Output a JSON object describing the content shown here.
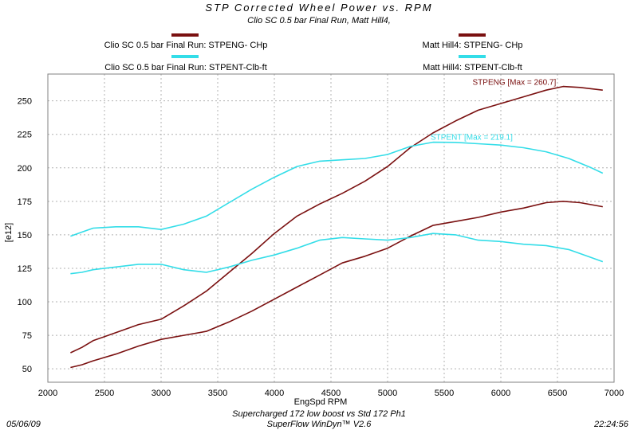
{
  "chart_data": {
    "type": "line",
    "title": "STP  Corrected  Wheel  Power  vs.  RPM",
    "subtitle": "Clio SC 0.5 bar Final Run, Matt Hill4,",
    "xlabel": "EngSpd  RPM",
    "ylabel": "[e12]",
    "xlim": [
      2000,
      7000
    ],
    "ylim": [
      40,
      270
    ],
    "xticks": [
      2000,
      2500,
      3000,
      3500,
      4000,
      4500,
      5000,
      5500,
      6000,
      6500,
      7000
    ],
    "yticks": [
      50,
      75,
      100,
      125,
      150,
      175,
      200,
      225,
      250
    ],
    "grid": true,
    "legend": [
      {
        "label": "Clio SC 0.5 bar Final Run: STPENG- CHp",
        "color": "#7a1010"
      },
      {
        "label": "Clio SC 0.5 bar Final Run: STPENT-Clb-ft",
        "color": "#33dde8"
      },
      {
        "label": "Matt Hill4: STPENG- CHp",
        "color": "#7a1010"
      },
      {
        "label": "Matt Hill4: STPENT-Clb-ft",
        "color": "#33dde8"
      }
    ],
    "series": [
      {
        "name": "Clio SC 0.5 bar Final Run: STPENG- CHp",
        "color": "#7a1010",
        "x": [
          2200,
          2300,
          2400,
          2600,
          2800,
          3000,
          3200,
          3400,
          3600,
          3800,
          4000,
          4200,
          4400,
          4600,
          4800,
          5000,
          5200,
          5400,
          5600,
          5800,
          6000,
          6200,
          6400,
          6550,
          6700,
          6900
        ],
        "y": [
          62,
          66,
          71,
          77,
          83,
          87,
          97,
          108,
          122,
          136,
          151,
          164,
          173,
          181,
          190,
          201,
          215,
          226,
          235,
          243,
          248,
          253,
          258,
          260.7,
          260,
          258
        ]
      },
      {
        "name": "Clio SC 0.5 bar Final Run: STPENT-Clb-ft",
        "color": "#33dde8",
        "x": [
          2200,
          2300,
          2400,
          2600,
          2800,
          3000,
          3200,
          3400,
          3600,
          3800,
          4000,
          4200,
          4400,
          4600,
          4800,
          5000,
          5200,
          5400,
          5600,
          5800,
          6000,
          6200,
          6400,
          6600,
          6800,
          6900
        ],
        "y": [
          149,
          152,
          155,
          156,
          156,
          154,
          158,
          164,
          174,
          184,
          193,
          201,
          205,
          206,
          207,
          210,
          216,
          219.1,
          219,
          218,
          217,
          215,
          212,
          207,
          200,
          196
        ]
      },
      {
        "name": "Matt Hill4: STPENG- CHp",
        "color": "#7a1010",
        "x": [
          2200,
          2300,
          2400,
          2600,
          2800,
          3000,
          3200,
          3400,
          3600,
          3800,
          4000,
          4200,
          4400,
          4600,
          4800,
          5000,
          5200,
          5400,
          5600,
          5800,
          6000,
          6200,
          6400,
          6550,
          6700,
          6900
        ],
        "y": [
          51,
          53,
          56,
          61,
          67,
          72,
          75,
          78,
          85,
          93,
          102,
          111,
          120,
          129,
          134,
          140,
          149,
          157,
          160,
          163,
          167,
          170,
          174,
          175,
          174,
          171
        ]
      },
      {
        "name": "Matt Hill4: STPENT-Clb-ft",
        "color": "#33dde8",
        "x": [
          2200,
          2300,
          2400,
          2600,
          2800,
          3000,
          3200,
          3400,
          3600,
          3800,
          4000,
          4200,
          4400,
          4600,
          4800,
          5000,
          5200,
          5400,
          5600,
          5800,
          6000,
          6200,
          6400,
          6600,
          6800,
          6900
        ],
        "y": [
          121,
          122,
          124,
          126,
          128,
          128,
          124,
          122,
          126,
          131,
          135,
          140,
          146,
          148,
          147,
          146,
          148,
          151,
          150,
          146,
          145,
          143,
          142,
          139,
          133,
          130
        ]
      }
    ],
    "annotations": [
      {
        "text": "STPENG [Max = 260.7]",
        "x": 5750,
        "y": 262,
        "color": "#7a1010"
      },
      {
        "text": "STPENT [Max = 219.1]",
        "x": 5380,
        "y": 221,
        "color": "#33dde8"
      }
    ]
  },
  "footer": {
    "date": "05/06/09",
    "line1": "Supercharged 172 low boost vs Std 172 Ph1",
    "line2": "SuperFlow WinDyn™ V2.6",
    "time": "22:24:56"
  },
  "colors": {
    "plot_bg": "#ffffff",
    "grid": "#b0b0b0",
    "frame": "#808080"
  }
}
